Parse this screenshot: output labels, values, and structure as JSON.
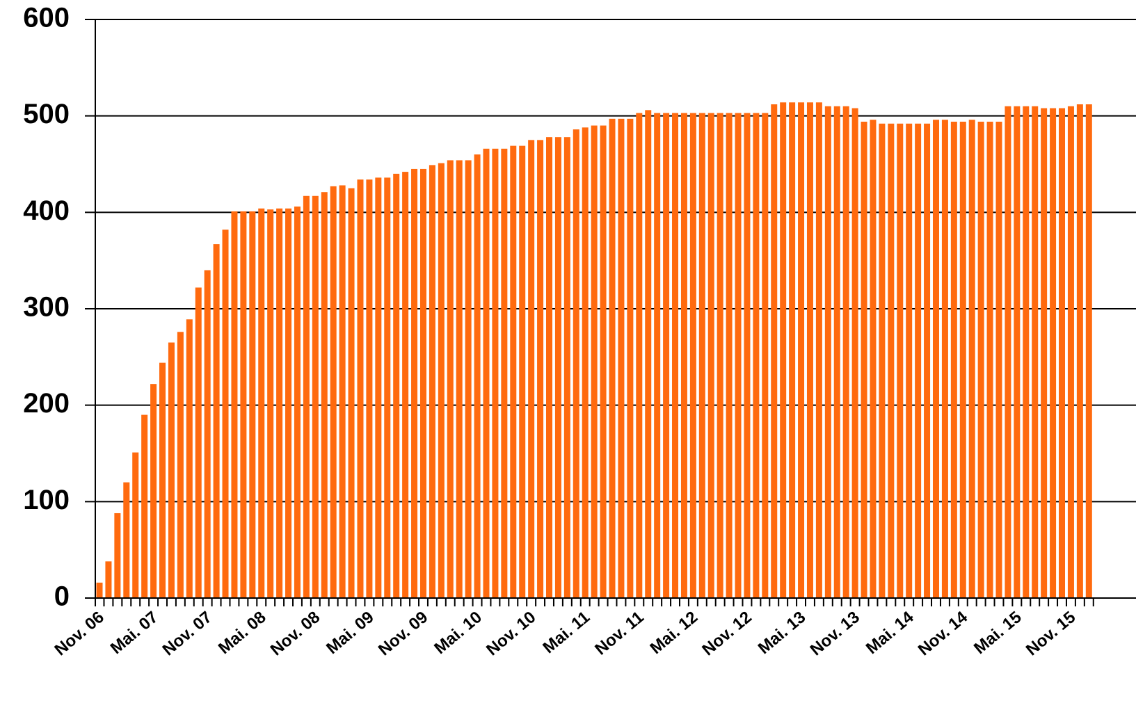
{
  "chart_data": {
    "type": "bar",
    "color": "#ff6a0e",
    "grid": true,
    "ylim": [
      0,
      600
    ],
    "yticks": [
      0,
      100,
      200,
      300,
      400,
      500,
      600
    ],
    "categories": [
      "Nov. 06",
      null,
      null,
      null,
      null,
      null,
      "Mai. 07",
      null,
      null,
      null,
      null,
      null,
      "Nov. 07",
      null,
      null,
      null,
      null,
      null,
      "Mai. 08",
      null,
      null,
      null,
      null,
      null,
      "Nov. 08",
      null,
      null,
      null,
      null,
      null,
      "Mai. 09",
      null,
      null,
      null,
      null,
      null,
      "Nov. 09",
      null,
      null,
      null,
      null,
      null,
      "Mai. 10",
      null,
      null,
      null,
      null,
      null,
      "Nov. 10",
      null,
      null,
      null,
      null,
      null,
      "Mai. 11",
      null,
      null,
      null,
      null,
      null,
      "Nov. 11",
      null,
      null,
      null,
      null,
      null,
      "Mai. 12",
      null,
      null,
      null,
      null,
      null,
      "Nov. 12",
      null,
      null,
      null,
      null,
      null,
      "Mai. 13",
      null,
      null,
      null,
      null,
      null,
      "Nov. 13",
      null,
      null,
      null,
      null,
      null,
      "Mai. 14",
      null,
      null,
      null,
      null,
      null,
      "Nov. 14",
      null,
      null,
      null,
      null,
      null,
      "Mai. 15",
      null,
      null,
      null,
      null,
      null,
      "Nov. 15",
      null,
      null
    ],
    "values": [
      16,
      38,
      88,
      120,
      151,
      190,
      222,
      244,
      265,
      276,
      289,
      322,
      340,
      367,
      382,
      401,
      401,
      401,
      404,
      403,
      404,
      404,
      406,
      417,
      417,
      421,
      427,
      428,
      425,
      434,
      434,
      436,
      436,
      440,
      442,
      445,
      445,
      449,
      451,
      454,
      454,
      454,
      460,
      466,
      466,
      466,
      469,
      469,
      475,
      475,
      478,
      478,
      478,
      486,
      488,
      490,
      490,
      497,
      497,
      497,
      503,
      506,
      503,
      503,
      503,
      503,
      503,
      503,
      503,
      503,
      503,
      503,
      503,
      503,
      503,
      512,
      514,
      514,
      514,
      514,
      514,
      510,
      510,
      510,
      508,
      494,
      496,
      492,
      492,
      492,
      492,
      492,
      492,
      496,
      496,
      494,
      494,
      496,
      494,
      494,
      494,
      510,
      510,
      510,
      510,
      508,
      508,
      508,
      510,
      512,
      512
    ]
  }
}
